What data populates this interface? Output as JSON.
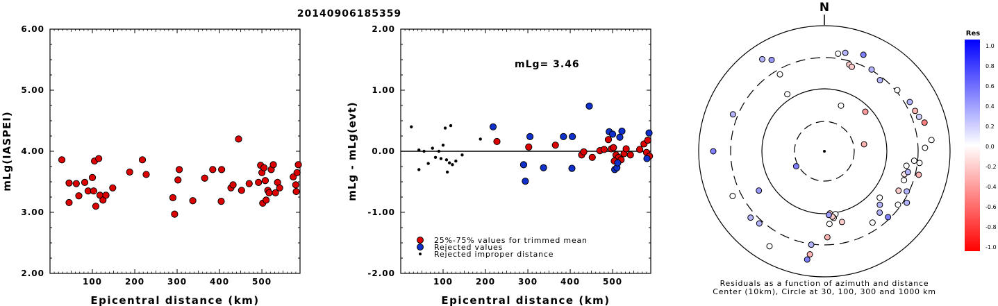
{
  "title": "20140906185359",
  "chart_data": [
    {
      "type": "scatter",
      "xlabel": "Epicentral distance (km)",
      "ylabel": "mLg(IASPEI)",
      "xlim": [
        0,
        590
      ],
      "ylim": [
        2.0,
        6.0
      ],
      "xticks": [
        "100",
        "200",
        "300",
        "400",
        "500"
      ],
      "yticks": [
        "2.00",
        "3.00",
        "4.00",
        "5.00",
        "6.00"
      ],
      "series": [
        {
          "color": "#dd0000",
          "points": [
            [
              28,
              3.86
            ],
            [
              45,
              3.48
            ],
            [
              45,
              3.16
            ],
            [
              62,
              3.47
            ],
            [
              68,
              3.27
            ],
            [
              82,
              3.49
            ],
            [
              90,
              3.35
            ],
            [
              100,
              3.57
            ],
            [
              103,
              3.35
            ],
            [
              105,
              3.84
            ],
            [
              108,
              3.1
            ],
            [
              115,
              3.88
            ],
            [
              118,
              3.28
            ],
            [
              125,
              3.2
            ],
            [
              132,
              3.28
            ],
            [
              148,
              3.4
            ],
            [
              188,
              3.66
            ],
            [
              218,
              3.86
            ],
            [
              227,
              3.62
            ],
            [
              290,
              3.24
            ],
            [
              294,
              2.97
            ],
            [
              302,
              3.53
            ],
            [
              305,
              3.7
            ],
            [
              337,
              3.19
            ],
            [
              365,
              3.56
            ],
            [
              384,
              3.7
            ],
            [
              404,
              3.18
            ],
            [
              405,
              3.7
            ],
            [
              427,
              3.4
            ],
            [
              432,
              3.45
            ],
            [
              445,
              4.2
            ],
            [
              452,
              3.36
            ],
            [
              470,
              3.47
            ],
            [
              492,
              3.49
            ],
            [
              497,
              3.77
            ],
            [
              500,
              3.65
            ],
            [
              502,
              3.15
            ],
            [
              505,
              3.73
            ],
            [
              508,
              3.52
            ],
            [
              510,
              3.2
            ],
            [
              514,
              3.36
            ],
            [
              517,
              3.32
            ],
            [
              522,
              3.7
            ],
            [
              527,
              3.78
            ],
            [
              532,
              3.32
            ],
            [
              537,
              3.49
            ],
            [
              542,
              3.4
            ],
            [
              574,
              3.58
            ],
            [
              580,
              3.45
            ],
            [
              581,
              3.34
            ],
            [
              583,
              3.65
            ],
            [
              586,
              3.78
            ]
          ]
        }
      ]
    },
    {
      "type": "scatter",
      "xlabel": "Epicentral distance (km)",
      "ylabel": "mLg - mLg(evt)",
      "xlim": [
        0,
        590
      ],
      "ylim": [
        -2.0,
        2.0
      ],
      "xticks": [
        "100",
        "200",
        "300",
        "400",
        "500"
      ],
      "yticks": [
        "-2.00",
        "-1.00",
        "0.00",
        "1.00",
        "2.00"
      ],
      "annotation": "mLg= 3.46",
      "legend": [
        "25%-75% values for trimmed mean",
        "Rejected values",
        "Rejected improper distance"
      ],
      "legend_position": "bottom-left",
      "series": [
        {
          "name": "25%-75% values for trimmed mean",
          "color": "#dd0000",
          "points": [
            [
              227,
              0.16
            ],
            [
              302,
              0.07
            ],
            [
              365,
              0.1
            ],
            [
              427,
              -0.06
            ],
            [
              432,
              -0.01
            ],
            [
              452,
              -0.1
            ],
            [
              470,
              0.01
            ],
            [
              480,
              0.03
            ],
            [
              490,
              0.19
            ],
            [
              497,
              0.04
            ],
            [
              502,
              0.06
            ],
            [
              508,
              -0.06
            ],
            [
              514,
              -0.1
            ],
            [
              520,
              -0.14
            ],
            [
              527,
              -0.04
            ],
            [
              532,
              0.04
            ],
            [
              542,
              -0.06
            ],
            [
              564,
              0.03
            ],
            [
              574,
              0.12
            ],
            [
              580,
              -0.02
            ],
            [
              583,
              0.18
            ],
            [
              587,
              -0.08
            ],
            [
              504,
              -0.16
            ]
          ]
        },
        {
          "name": "Rejected values",
          "color": "#1030cc",
          "points": [
            [
              218,
              0.4
            ],
            [
              290,
              -0.22
            ],
            [
              294,
              -0.49
            ],
            [
              305,
              0.24
            ],
            [
              337,
              -0.27
            ],
            [
              384,
              0.24
            ],
            [
              404,
              -0.28
            ],
            [
              405,
              0.24
            ],
            [
              445,
              0.74
            ],
            [
              492,
              0.32
            ],
            [
              500,
              0.28
            ],
            [
              505,
              -0.3
            ],
            [
              510,
              -0.27
            ],
            [
              512,
              -0.19
            ],
            [
              517,
              0.23
            ],
            [
              522,
              0.33
            ],
            [
              581,
              -0.12
            ],
            [
              586,
              0.3
            ]
          ]
        },
        {
          "name": "Rejected improper distance",
          "color": "#000000",
          "points": [
            [
              25,
              0.4
            ],
            [
              43,
              0.02
            ],
            [
              43,
              -0.3
            ],
            [
              55,
              0.0
            ],
            [
              65,
              -0.2
            ],
            [
              75,
              0.05
            ],
            [
              82,
              -0.1
            ],
            [
              90,
              0.0
            ],
            [
              95,
              -0.12
            ],
            [
              100,
              0.1
            ],
            [
              105,
              0.38
            ],
            [
              108,
              -0.14
            ],
            [
              110,
              -0.34
            ],
            [
              115,
              -0.19
            ],
            [
              118,
              0.42
            ],
            [
              122,
              -0.22
            ],
            [
              130,
              -0.16
            ],
            [
              145,
              -0.06
            ],
            [
              188,
              0.2
            ]
          ]
        }
      ]
    },
    {
      "type": "scatter",
      "subtype": "polar residual map",
      "north_label": "N",
      "caption": [
        "Residuals as a function of azimuth and distance",
        "Center (10km), Circle at 30, 100, 300 and 1000 km"
      ],
      "colorbar": {
        "title": "Res",
        "ticks": [
          "1.0",
          "0.8",
          "0.6",
          "0.4",
          "0.2",
          "0.0",
          "-0.2",
          "-0.4",
          "-0.6",
          "-0.8",
          "-1.0"
        ],
        "range": [
          -1.0,
          1.0
        ],
        "colors": [
          "#0000ff",
          "#ffffff",
          "#ff0000"
        ]
      },
      "points_az_dist_res": [
        [
          12,
          145,
          0.3
        ],
        [
          8,
          142,
          0.0
        ],
        [
          22,
          150,
          0.5
        ],
        [
          30,
          136,
          0.3
        ],
        [
          16,
          130,
          -0.2
        ],
        [
          18,
          128,
          -0.2
        ],
        [
          330,
          152,
          0.4
        ],
        [
          326,
          160,
          0.3
        ],
        [
          292,
          142,
          0.3
        ],
        [
          327,
          98,
          0.0
        ],
        [
          330,
          128,
          0.0
        ],
        [
          20,
          70,
          0.0
        ],
        [
          46,
          82,
          -0.4
        ],
        [
          80,
          58,
          -0.3
        ],
        [
          242,
          46,
          0.5
        ],
        [
          270,
          160,
          0.5
        ],
        [
          239,
          110,
          0.4
        ],
        [
          244,
          147,
          0.0
        ],
        [
          228,
          143,
          0.3
        ],
        [
          222,
          140,
          0.3
        ],
        [
          210,
          158,
          0.0
        ],
        [
          188,
          150,
          -0.3
        ],
        [
          189,
          158,
          0.5
        ],
        [
          188,
          136,
          0.3
        ],
        [
          178,
          124,
          -0.3
        ],
        [
          176,
          105,
          0.0
        ],
        [
          170,
          92,
          0.0
        ],
        [
          175,
          90,
          -0.2
        ],
        [
          172,
          97,
          -0.1
        ],
        [
          173,
          95,
          -0.2
        ],
        [
          176,
          92,
          0.4
        ],
        [
          166,
          105,
          -0.2
        ],
        [
          138,
          119,
          0.3
        ],
        [
          136,
          132,
          0.5
        ],
        [
          146,
          124,
          0.0
        ],
        [
          122,
          140,
          0.3
        ],
        [
          116,
          132,
          0.3
        ],
        [
          126,
          131,
          0.0
        ],
        [
          118,
          121,
          -0.2
        ],
        [
          110,
          122,
          0.0
        ],
        [
          106,
          120,
          -0.1
        ],
        [
          104,
          140,
          -0.3
        ],
        [
          100,
          120,
          0.0
        ],
        [
          104,
          124,
          0.3
        ],
        [
          97,
          138,
          0.0
        ],
        [
          96,
          130,
          0.0
        ],
        [
          88,
          145,
          0.0
        ],
        [
          84,
          155,
          0.0
        ],
        [
          74,
          150,
          -0.5
        ],
        [
          70,
          145,
          0.2
        ],
        [
          66,
          143,
          -0.3
        ],
        [
          60,
          142,
          0.3
        ],
        [
          50,
          137,
          0.0
        ],
        [
          38,
          130,
          0.3
        ],
        [
          130,
          104,
          0.0
        ],
        [
          134,
          111,
          0.3
        ]
      ]
    }
  ]
}
